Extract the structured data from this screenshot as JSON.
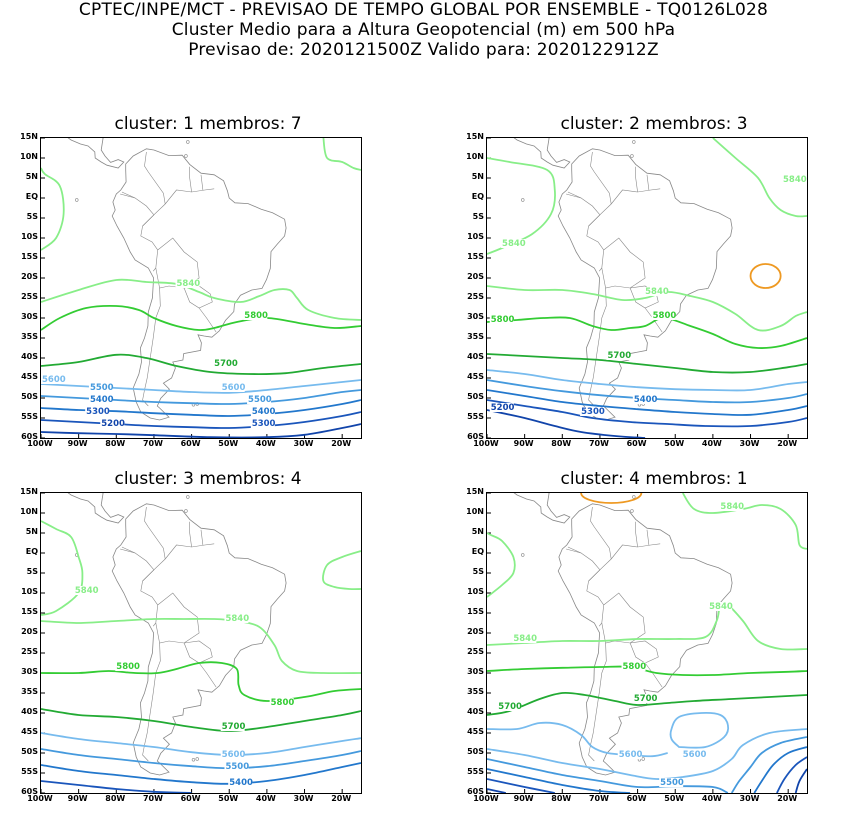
{
  "header": {
    "line1": "CPTEC/INPE/MCT - PREVISAO DE TEMPO GLOBAL POR ENSEMBLE - TQ0126L028",
    "line2": "Cluster Medio para a Altura Geopotencial (m) em 500 hPa",
    "line3": "Previsao de: 2020121500Z    Valido para: 2020122912Z"
  },
  "axes": {
    "lat_labels": [
      "15N",
      "10N",
      "5N",
      "EQ",
      "5S",
      "10S",
      "15S",
      "20S",
      "25S",
      "30S",
      "35S",
      "40S",
      "45S",
      "50S",
      "55S",
      "60S"
    ],
    "lon_labels": [
      "100W",
      "90W",
      "80W",
      "70W",
      "60W",
      "50W",
      "40W",
      "30W",
      "20W"
    ]
  },
  "colors": {
    "5840": "#88ee88",
    "5800": "#33cc33",
    "5700": "#22aa33",
    "5600": "#77bbee",
    "5500": "#4499dd",
    "5400": "#2277cc",
    "5300": "#1a55bb",
    "5200": "#1144aa",
    "high": "#ee9922",
    "coast": "#888888"
  },
  "panels": [
    {
      "title": "cluster: 1   membros: 7",
      "contour_labels": [
        {
          "text": "5840",
          "color": "5840",
          "lon": -64,
          "lat": -22
        },
        {
          "text": "5800",
          "color": "5800",
          "lon": -46,
          "lat": -30
        },
        {
          "text": "5700",
          "color": "5700",
          "lon": -54,
          "lat": -42
        },
        {
          "text": "5600",
          "color": "5600",
          "lon": -100,
          "lat": -46
        },
        {
          "text": "5600",
          "color": "5600",
          "lon": -52,
          "lat": -48
        },
        {
          "text": "5500",
          "color": "5500",
          "lon": -87,
          "lat": -48
        },
        {
          "text": "5500",
          "color": "5500",
          "lon": -45,
          "lat": -51
        },
        {
          "text": "5400",
          "color": "5400",
          "lon": -87,
          "lat": -51
        },
        {
          "text": "5400",
          "color": "5400",
          "lon": -44,
          "lat": -54
        },
        {
          "text": "5300",
          "color": "5300",
          "lon": -88,
          "lat": -54
        },
        {
          "text": "5300",
          "color": "5300",
          "lon": -44,
          "lat": -57
        },
        {
          "text": "5200",
          "color": "5200",
          "lon": -84,
          "lat": -57
        }
      ]
    },
    {
      "title": "cluster: 2   membros: 3",
      "contour_labels": [
        {
          "text": "5840",
          "color": "5840",
          "lon": -96,
          "lat": -12
        },
        {
          "text": "5840",
          "color": "5840",
          "lon": -18,
          "lat": 4
        },
        {
          "text": "5840",
          "color": "5840",
          "lon": -58,
          "lat": -24
        },
        {
          "text": "5800",
          "color": "5800",
          "lon": -99,
          "lat": -31
        },
        {
          "text": "5800",
          "color": "5800",
          "lon": -56,
          "lat": -30
        },
        {
          "text": "5700",
          "color": "5700",
          "lon": -68,
          "lat": -40
        },
        {
          "text": "5400",
          "color": "5400",
          "lon": -61,
          "lat": -51
        },
        {
          "text": "5300",
          "color": "5300",
          "lon": -75,
          "lat": -54
        },
        {
          "text": "5200",
          "color": "5200",
          "lon": -99,
          "lat": -53
        }
      ]
    },
    {
      "title": "cluster: 3   membros: 4",
      "contour_labels": [
        {
          "text": "5840",
          "color": "5840",
          "lon": -91,
          "lat": -10
        },
        {
          "text": "5840",
          "color": "5840",
          "lon": -51,
          "lat": -17
        },
        {
          "text": "5800",
          "color": "5800",
          "lon": -80,
          "lat": -29
        },
        {
          "text": "5800",
          "color": "5800",
          "lon": -39,
          "lat": -38
        },
        {
          "text": "5700",
          "color": "5700",
          "lon": -52,
          "lat": -44
        },
        {
          "text": "5600",
          "color": "5600",
          "lon": -52,
          "lat": -51
        },
        {
          "text": "5500",
          "color": "5500",
          "lon": -51,
          "lat": -54
        },
        {
          "text": "5400",
          "color": "5400",
          "lon": -50,
          "lat": -58
        }
      ]
    },
    {
      "title": "cluster: 4   membros: 1",
      "contour_labels": [
        {
          "text": "5840",
          "color": "5840",
          "lon": -38,
          "lat": 11
        },
        {
          "text": "5840",
          "color": "5840",
          "lon": -41,
          "lat": -14
        },
        {
          "text": "5840",
          "color": "5840",
          "lon": -93,
          "lat": -22
        },
        {
          "text": "5800",
          "color": "5800",
          "lon": -64,
          "lat": -29
        },
        {
          "text": "5700",
          "color": "5700",
          "lon": -97,
          "lat": -39
        },
        {
          "text": "5700",
          "color": "5700",
          "lon": -61,
          "lat": -37
        },
        {
          "text": "5600",
          "color": "5600",
          "lon": -65,
          "lat": -51
        },
        {
          "text": "5600",
          "color": "5600",
          "lon": -48,
          "lat": -51
        },
        {
          "text": "5500",
          "color": "5500",
          "lon": -54,
          "lat": -58
        }
      ]
    }
  ]
}
